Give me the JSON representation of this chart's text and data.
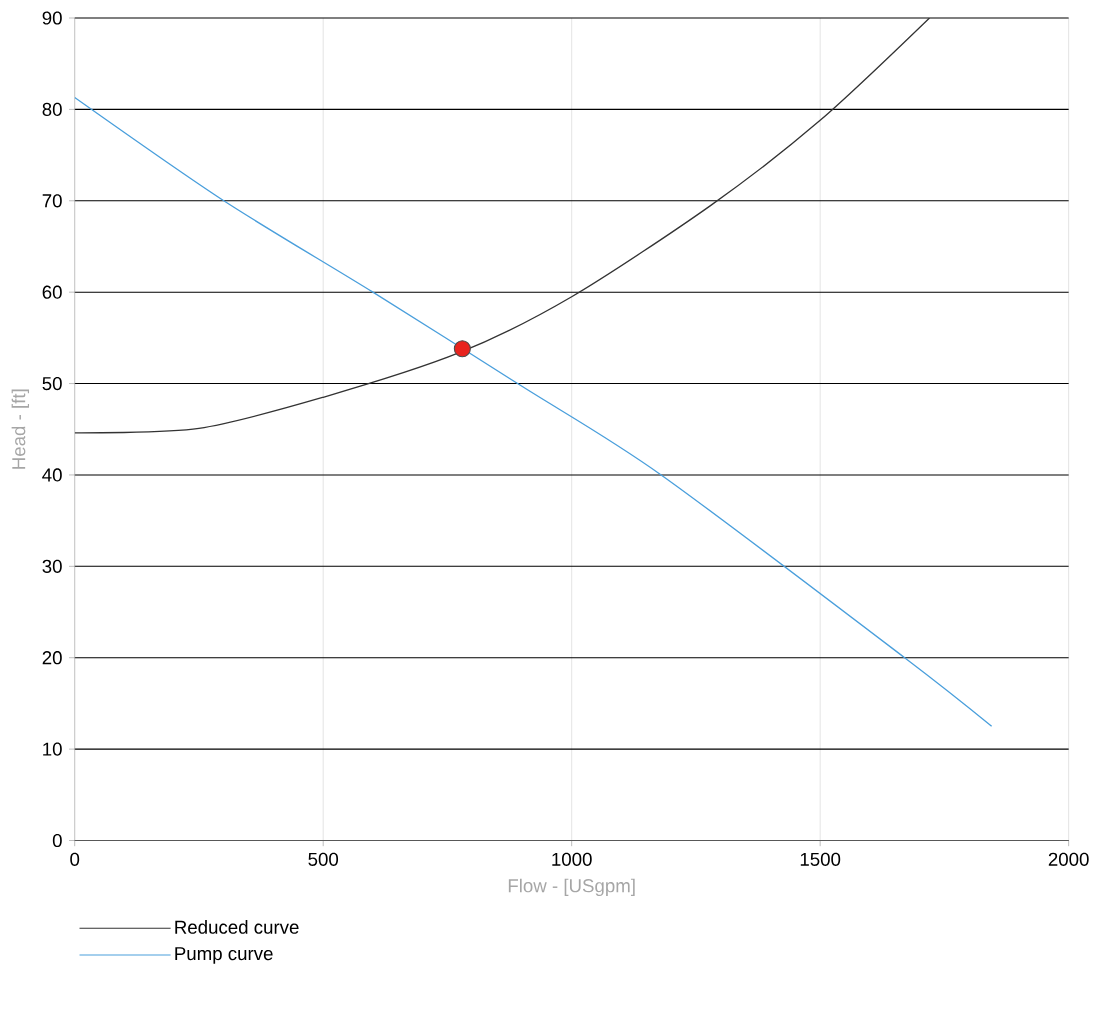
{
  "chart_data": {
    "type": "line",
    "xlabel": "Flow - [USgpm]",
    "ylabel": "Head - [ft]",
    "xlim": [
      0,
      2000
    ],
    "ylim": [
      0,
      90
    ],
    "xticks": [
      0,
      500,
      1000,
      1500,
      2000
    ],
    "yticks": [
      0,
      10,
      20,
      30,
      40,
      50,
      60,
      70,
      80,
      90
    ],
    "grid": true,
    "legend": "bottom left",
    "marker": "none",
    "series": [
      {
        "name": "Reduced curve",
        "color": "#333333",
        "line_style": "solid",
        "x": [
          0,
          250,
          500,
          775,
          1000,
          1280,
          1500,
          1720
        ],
        "values": [
          44.6,
          45.1,
          48.5,
          53.4,
          59.5,
          69.5,
          78.8,
          90
        ]
      },
      {
        "name": "Pump curve",
        "color": "#4a9fdc",
        "line_style": "solid",
        "x": [
          0,
          300,
          600,
          900,
          1180,
          1670,
          1845
        ],
        "values": [
          81.3,
          70,
          60,
          49.7,
          40,
          20,
          12.5
        ]
      },
      {
        "type": "scatter",
        "color": "#e8231e",
        "marker": "circle",
        "x": [
          780
        ],
        "values": [
          53.8
        ]
      }
    ]
  }
}
